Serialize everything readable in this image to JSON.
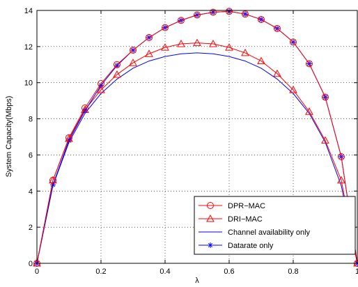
{
  "chart_data": {
    "type": "line",
    "xlabel": "λ",
    "ylabel": "System Capacity(Mbps)",
    "xlim": [
      0,
      1
    ],
    "ylim": [
      0,
      14
    ],
    "xticks": [
      "0",
      "0.2",
      "0.4",
      "0.6",
      "0.8",
      "1"
    ],
    "yticks": [
      "0",
      "2",
      "4",
      "6",
      "8",
      "10",
      "12",
      "14"
    ],
    "grid": true,
    "legend_position": "bottom-right",
    "series": [
      {
        "name": "DPR−MAC",
        "color": "#ff0000",
        "marker": "circle",
        "x": [
          0,
          0.05,
          0.1,
          0.15,
          0.2,
          0.25,
          0.3,
          0.35,
          0.4,
          0.45,
          0.5,
          0.55,
          0.6,
          0.65,
          0.7,
          0.75,
          0.8,
          0.85,
          0.9,
          0.95,
          1
        ],
        "y": [
          0,
          4.6,
          6.95,
          8.6,
          9.95,
          11.0,
          11.8,
          12.5,
          13.05,
          13.45,
          13.75,
          13.9,
          13.95,
          13.8,
          13.5,
          13.0,
          12.25,
          11.05,
          9.2,
          5.9,
          0
        ]
      },
      {
        "name": "DRI−MAC",
        "color": "#ff0000",
        "marker": "triangle",
        "x": [
          0,
          0.05,
          0.1,
          0.15,
          0.2,
          0.25,
          0.3,
          0.35,
          0.4,
          0.45,
          0.5,
          0.55,
          0.6,
          0.65,
          0.7,
          0.75,
          0.8,
          0.85,
          0.9,
          0.95,
          1
        ],
        "y": [
          0,
          4.6,
          6.9,
          8.5,
          9.6,
          10.45,
          11.1,
          11.6,
          11.95,
          12.15,
          12.2,
          12.15,
          11.95,
          11.65,
          11.2,
          10.5,
          9.6,
          8.4,
          6.8,
          4.6,
          0
        ]
      },
      {
        "name": "Channel availability only",
        "color": "#0000ff",
        "marker": "none",
        "x": [
          0,
          0.05,
          0.1,
          0.15,
          0.2,
          0.25,
          0.3,
          0.35,
          0.4,
          0.45,
          0.5,
          0.55,
          0.6,
          0.65,
          0.7,
          0.75,
          0.8,
          0.85,
          0.9,
          0.95,
          1
        ],
        "y": [
          0,
          4.3,
          6.7,
          8.3,
          9.4,
          10.2,
          10.8,
          11.2,
          11.45,
          11.6,
          11.65,
          11.6,
          11.45,
          11.2,
          10.8,
          10.2,
          9.4,
          8.3,
          6.7,
          4.3,
          0
        ]
      },
      {
        "name": "Datarate only",
        "color": "#0000ff",
        "marker": "asterisk",
        "x": [
          0,
          0.05,
          0.1,
          0.15,
          0.2,
          0.25,
          0.3,
          0.35,
          0.4,
          0.45,
          0.5,
          0.55,
          0.6,
          0.65,
          0.7,
          0.75,
          0.8,
          0.85,
          0.9,
          0.95,
          1
        ],
        "y": [
          0,
          4.35,
          6.8,
          8.45,
          9.85,
          10.95,
          11.8,
          12.5,
          13.05,
          13.45,
          13.75,
          13.9,
          13.95,
          13.8,
          13.5,
          13.0,
          12.25,
          11.05,
          9.2,
          5.9,
          0
        ]
      }
    ]
  }
}
